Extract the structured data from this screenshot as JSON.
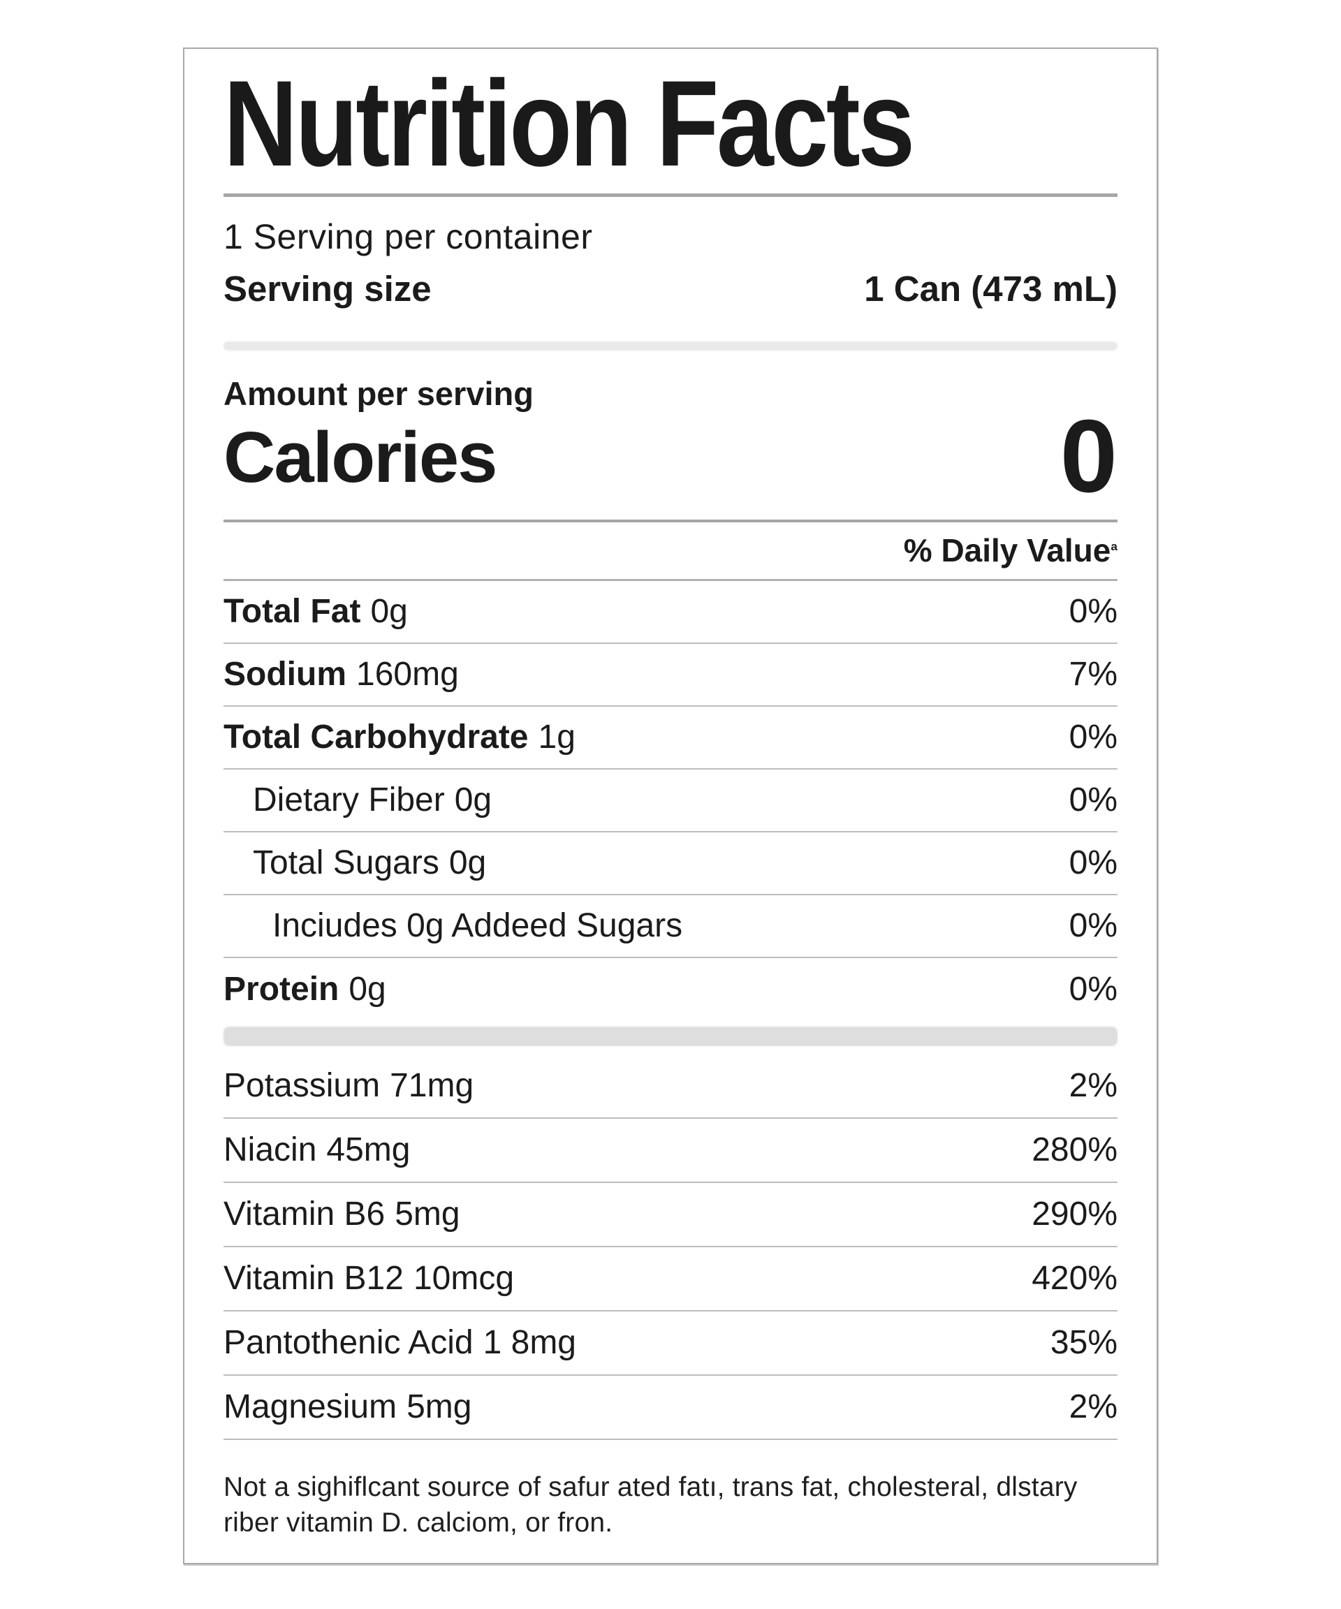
{
  "label": {
    "title": "Nutrition Facts",
    "servings_per_container": "1 Serving per container",
    "serving_size_label": "Serving size",
    "serving_size_value": "1 Can (473 mL)",
    "amount_per_serving": "Amount per serving",
    "calories_label": "Calories",
    "calories_value": "0",
    "daily_value_header": "% Daily Value",
    "daily_value_superscript": "ª",
    "nutrients": [
      {
        "name": "Total Fat",
        "amount": "0g",
        "dv": "0%"
      },
      {
        "name": "Sodium",
        "amount": "160mg",
        "dv": "7%"
      },
      {
        "name": "Total Carbohydrate",
        "amount": "1g",
        "dv": "0%"
      },
      {
        "name": "Dietary Fiber",
        "amount": "0g",
        "dv": "0%"
      },
      {
        "name": "Total Sugars",
        "amount": "0g",
        "dv": "0%"
      },
      {
        "name": "Inciudes 0g Addeed Sugars",
        "amount": "",
        "dv": "0%"
      },
      {
        "name": "Protein",
        "amount": "0g",
        "dv": "0%"
      }
    ],
    "vitamins": [
      {
        "name": "Potassium",
        "amount": "71mg",
        "dv": "2%"
      },
      {
        "name": "Niacin",
        "amount": "45mg",
        "dv": "280%"
      },
      {
        "name": "Vitamin B6",
        "amount": "5mg",
        "dv": "290%"
      },
      {
        "name": "Vitamin B12",
        "amount": "10mcg",
        "dv": "420%"
      },
      {
        "name": "Pantothenic Acid",
        "amount": "1 8mg",
        "dv": "35%"
      },
      {
        "name": "Magnesium",
        "amount": "5mg",
        "dv": "2%"
      }
    ],
    "footnote": "Not a sighiflcant source of safur ated fatı, trans fat, cholesteral, dlstary riber vitamin D. calciom, or fron."
  }
}
